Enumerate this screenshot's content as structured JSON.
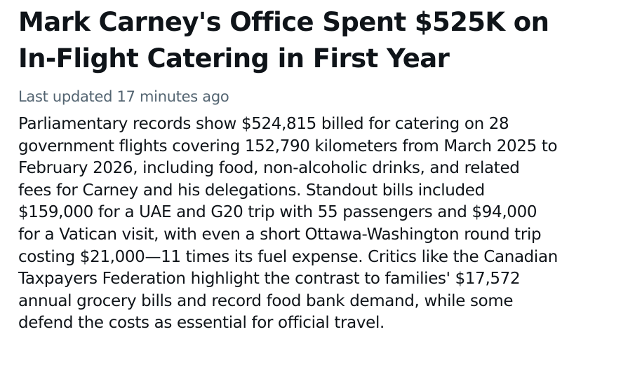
{
  "article": {
    "headline_lines": [
      "Mark Carney's Office Spent $525K on",
      "In-Flight Catering in First Year"
    ],
    "last_updated": "Last updated 17 minutes ago",
    "body_lines": [
      "Parliamentary records show $524,815 billed for catering on 28",
      "government flights covering 152,790 kilometers from March 2025 to",
      "February 2026, including food, non-alcoholic drinks, and related",
      "fees for Carney and his delegations. Standout bills included",
      "$159,000 for a UAE and G20 trip with 55 passengers and $94,000",
      "for a Vatican visit, with even a short Ottawa-Washington round trip",
      "costing $21,000—11 times its fuel expense. Critics like the Canadian",
      "Taxpayers Federation highlight the contrast to families' $17,572",
      "annual grocery bills and record food bank demand, while some",
      "defend the costs as essential for official travel."
    ]
  },
  "colors": {
    "text": "#0f1419",
    "muted": "#536471",
    "background": "#ffffff"
  }
}
